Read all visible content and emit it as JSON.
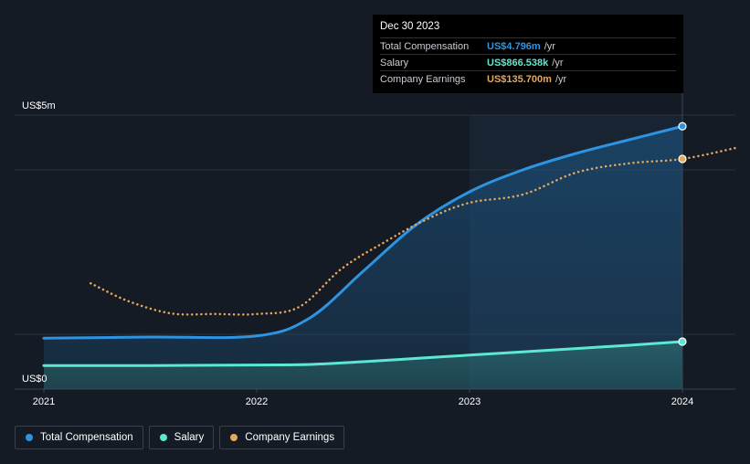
{
  "chart_data": {
    "type": "line",
    "x_ticks": [
      "2021",
      "2022",
      "2023",
      "2024"
    ],
    "y_axis": {
      "top_label": "US$5m",
      "bottom_label": "US$0",
      "ylim": [
        0,
        5
      ]
    },
    "series": [
      {
        "name": "Total Compensation",
        "color": "#2d94e2",
        "style": "solid",
        "fill": true,
        "points": [
          [
            2021.0,
            0.93
          ],
          [
            2021.5,
            0.95
          ],
          [
            2022.0,
            0.97
          ],
          [
            2022.25,
            1.3
          ],
          [
            2022.5,
            2.15
          ],
          [
            2022.75,
            3.0
          ],
          [
            2023.0,
            3.6
          ],
          [
            2023.25,
            4.0
          ],
          [
            2023.5,
            4.3
          ],
          [
            2023.75,
            4.55
          ],
          [
            2024.0,
            4.796
          ]
        ]
      },
      {
        "name": "Salary",
        "color": "#5de8d2",
        "style": "solid",
        "fill": true,
        "points": [
          [
            2021.0,
            0.43
          ],
          [
            2021.5,
            0.43
          ],
          [
            2022.0,
            0.44
          ],
          [
            2022.25,
            0.45
          ],
          [
            2022.5,
            0.5
          ],
          [
            2022.75,
            0.56
          ],
          [
            2023.0,
            0.62
          ],
          [
            2023.25,
            0.68
          ],
          [
            2023.5,
            0.74
          ],
          [
            2023.75,
            0.8
          ],
          [
            2024.0,
            0.867
          ]
        ]
      },
      {
        "name": "Company Earnings",
        "color": "#e8a85a",
        "style": "dotted",
        "fill": false,
        "points": [
          [
            2021.22,
            1.93
          ],
          [
            2021.4,
            1.6
          ],
          [
            2021.6,
            1.38
          ],
          [
            2021.8,
            1.37
          ],
          [
            2022.0,
            1.37
          ],
          [
            2022.2,
            1.5
          ],
          [
            2022.4,
            2.2
          ],
          [
            2022.6,
            2.68
          ],
          [
            2022.8,
            3.1
          ],
          [
            2023.0,
            3.4
          ],
          [
            2023.25,
            3.55
          ],
          [
            2023.5,
            3.95
          ],
          [
            2023.75,
            4.12
          ],
          [
            2024.0,
            4.2
          ],
          [
            2024.25,
            4.4
          ]
        ]
      }
    ],
    "highlight": {
      "x": 2024.0
    }
  },
  "tooltip": {
    "date": "Dec 30 2023",
    "rows": [
      {
        "name": "Total Compensation",
        "value": "US$4.796m",
        "unit": "/yr",
        "color": "#2d94e2"
      },
      {
        "name": "Salary",
        "value": "US$866.538k",
        "unit": "/yr",
        "color": "#5de8d2"
      },
      {
        "name": "Company Earnings",
        "value": "US$135.700m",
        "unit": "/yr",
        "color": "#e8a85a"
      }
    ]
  },
  "legend": [
    {
      "label": "Total Compensation",
      "color": "#2d94e2"
    },
    {
      "label": "Salary",
      "color": "#5de8d2"
    },
    {
      "label": "Company Earnings",
      "color": "#e8a85a"
    }
  ]
}
